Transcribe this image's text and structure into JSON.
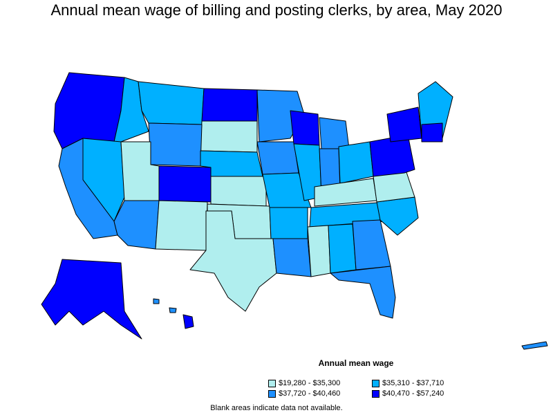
{
  "title": "Annual mean wage of billing and posting clerks, by area, May 2020",
  "legend": {
    "title": "Annual mean wage",
    "items": [
      {
        "label": "$19,280 - $35,300",
        "color": "#b0eeee"
      },
      {
        "label": "$35,310 - $37,710",
        "color": "#00b0ff"
      },
      {
        "label": "$37,720 - $40,460",
        "color": "#1e90ff"
      },
      {
        "label": "$40,470 - $57,240",
        "color": "#0000ff"
      }
    ]
  },
  "note": "Blank areas indicate data not available.",
  "colors": {
    "border": "#000000",
    "background": "#ffffff"
  }
}
